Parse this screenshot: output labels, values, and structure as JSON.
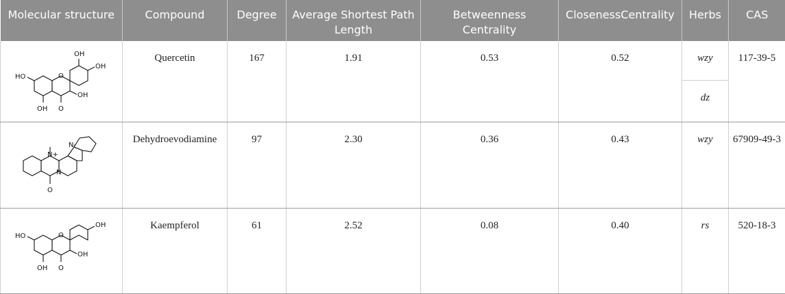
{
  "header": {
    "molecular_structure": "Molecular structure",
    "compound": "Compound",
    "degree": "Degree",
    "avg_path": "Average Shortest Path Length",
    "betweenness": "Betweenness Centrality",
    "closeness": "ClosenessCentrality",
    "herbs": "Herbs",
    "cas": "CAS"
  },
  "rows": [
    {
      "compound": "Quercetin",
      "degree": "167",
      "avg_path": "1.91",
      "betweenness": "0.53",
      "closeness": "0.52",
      "herbs": [
        "wzy",
        "dz"
      ],
      "cas": "117-39-5",
      "structure_labels": {
        "a": "OH",
        "b": "OH",
        "c": "HO",
        "d": "OH",
        "e": "OH",
        "f": "O",
        "g": "O"
      }
    },
    {
      "compound": "Dehydroevodiamine",
      "degree": "97",
      "avg_path": "2.30",
      "betweenness": "0.36",
      "closeness": "0.43",
      "herbs": [
        "wzy"
      ],
      "cas": "67909-49-3",
      "structure_labels": {
        "a": "N+",
        "b": "N-",
        "c": "N",
        "d": "O"
      }
    },
    {
      "compound": "Kaempferol",
      "degree": "61",
      "avg_path": "2.52",
      "betweenness": "0.08",
      "closeness": "0.40",
      "herbs": [
        "rs"
      ],
      "cas": "520-18-3",
      "structure_labels": {
        "a": "OH",
        "b": "HO",
        "c": "OH",
        "d": "OH",
        "e": "O",
        "f": "O"
      }
    }
  ]
}
